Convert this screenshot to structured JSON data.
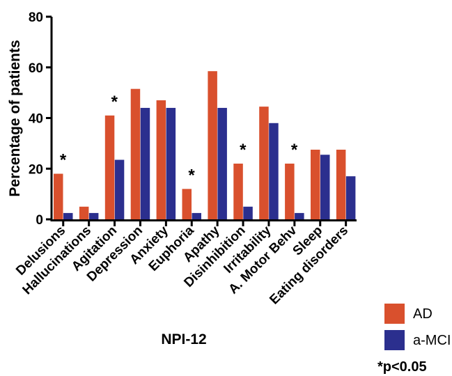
{
  "chart_data": {
    "type": "bar",
    "title": "",
    "xlabel": "NPI-12",
    "ylabel": "Percentage of patients",
    "ylim": [
      0,
      80
    ],
    "yticks": [
      "0",
      "20",
      "40",
      "60",
      "80"
    ],
    "categories": [
      "Delusions",
      "Hallucinations",
      "Agitation",
      "Depression",
      "Anxiety",
      "Euphoria",
      "Apathy",
      "Disinhibition",
      "Irritability",
      "A. Motor Behv",
      "Sleep",
      "Eating disorders"
    ],
    "series": [
      {
        "name": "AD",
        "color": "#d9502d",
        "values": [
          18,
          5,
          41,
          51.5,
          47,
          12,
          58.5,
          22,
          44.5,
          22,
          27.5,
          27.5
        ]
      },
      {
        "name": "a-MCI",
        "color": "#2b2f8e",
        "values": [
          2.5,
          2.5,
          23.5,
          44,
          44,
          2.5,
          44,
          5,
          38,
          2.5,
          25.5,
          17
        ]
      }
    ],
    "significance_marker": "*",
    "significant": [
      true,
      false,
      true,
      false,
      false,
      true,
      false,
      true,
      false,
      true,
      false,
      false
    ],
    "legend_position": "bottom-right",
    "footnote": "*p<0.05"
  }
}
